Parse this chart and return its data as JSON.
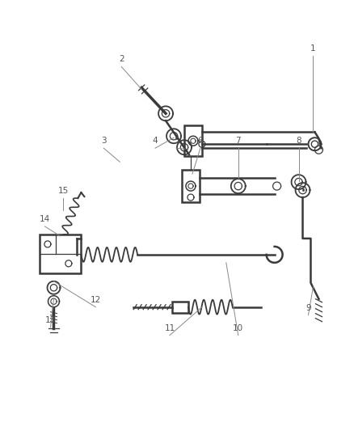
{
  "bg_color": "#ffffff",
  "line_color": "#3a3a3a",
  "label_color": "#555555",
  "leader_color": "#888888",
  "fig_width": 4.38,
  "fig_height": 5.33,
  "dpi": 100
}
